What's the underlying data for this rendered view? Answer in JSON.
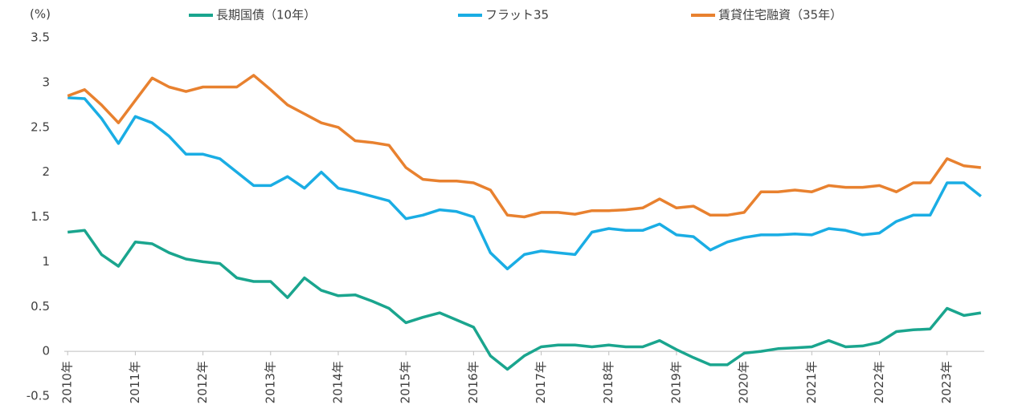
{
  "chart_data": {
    "type": "line",
    "y_unit": "(%)",
    "x": [
      2010,
      2010.25,
      2010.5,
      2010.75,
      2011,
      2011.25,
      2011.5,
      2011.75,
      2012,
      2012.25,
      2012.5,
      2012.75,
      2013,
      2013.25,
      2013.5,
      2013.75,
      2014,
      2014.25,
      2014.5,
      2014.75,
      2015,
      2015.25,
      2015.5,
      2015.75,
      2016,
      2016.25,
      2016.5,
      2016.75,
      2017,
      2017.25,
      2017.5,
      2017.75,
      2018,
      2018.25,
      2018.5,
      2018.75,
      2019,
      2019.25,
      2019.5,
      2019.75,
      2020,
      2020.25,
      2020.5,
      2020.75,
      2021,
      2021.25,
      2021.5,
      2021.75,
      2022,
      2022.25,
      2022.5,
      2022.75,
      2023,
      2023.25,
      2023.5
    ],
    "series": [
      {
        "name": "長期国債（10年）",
        "color": "#1aa58e",
        "values": [
          1.33,
          1.35,
          1.08,
          0.95,
          1.22,
          1.2,
          1.1,
          1.03,
          1.0,
          0.98,
          0.82,
          0.78,
          0.78,
          0.6,
          0.82,
          0.68,
          0.62,
          0.63,
          0.56,
          0.48,
          0.32,
          0.38,
          0.43,
          0.35,
          0.27,
          -0.05,
          -0.2,
          -0.05,
          0.05,
          0.07,
          0.07,
          0.05,
          0.07,
          0.05,
          0.05,
          0.12,
          0.02,
          -0.07,
          -0.15,
          -0.15,
          -0.02,
          0.0,
          0.03,
          0.04,
          0.05,
          0.12,
          0.05,
          0.06,
          0.1,
          0.22,
          0.24,
          0.25,
          0.48,
          0.4,
          0.43
        ]
      },
      {
        "name": "フラット35",
        "color": "#1aade4",
        "values": [
          2.83,
          2.82,
          2.6,
          2.32,
          2.62,
          2.55,
          2.4,
          2.2,
          2.2,
          2.15,
          2.0,
          1.85,
          1.85,
          1.95,
          1.82,
          2.0,
          1.82,
          1.78,
          1.73,
          1.68,
          1.48,
          1.52,
          1.58,
          1.56,
          1.5,
          1.1,
          0.92,
          1.08,
          1.12,
          1.1,
          1.08,
          1.33,
          1.37,
          1.35,
          1.35,
          1.42,
          1.3,
          1.28,
          1.13,
          1.22,
          1.27,
          1.3,
          1.3,
          1.31,
          1.3,
          1.37,
          1.35,
          1.3,
          1.32,
          1.45,
          1.52,
          1.52,
          1.88,
          1.88,
          1.73
        ]
      },
      {
        "name": "賃貸住宅融資（35年）",
        "color": "#e8812f",
        "values": [
          2.85,
          2.92,
          2.75,
          2.55,
          2.8,
          3.05,
          2.95,
          2.9,
          2.95,
          2.95,
          2.95,
          3.08,
          2.92,
          2.75,
          2.65,
          2.55,
          2.5,
          2.35,
          2.33,
          2.3,
          2.05,
          1.92,
          1.9,
          1.9,
          1.88,
          1.8,
          1.52,
          1.5,
          1.55,
          1.55,
          1.53,
          1.57,
          1.57,
          1.58,
          1.6,
          1.7,
          1.6,
          1.62,
          1.52,
          1.52,
          1.55,
          1.78,
          1.78,
          1.8,
          1.78,
          1.85,
          1.83,
          1.83,
          1.85,
          1.78,
          1.88,
          1.88,
          2.15,
          2.07,
          2.05
        ]
      }
    ],
    "xlim": [
      2009.95,
      2023.55
    ],
    "xticks": [
      {
        "value": 2010,
        "label": "2010年"
      },
      {
        "value": 2011,
        "label": "2011年"
      },
      {
        "value": 2012,
        "label": "2012年"
      },
      {
        "value": 2013,
        "label": "2013年"
      },
      {
        "value": 2014,
        "label": "2014年"
      },
      {
        "value": 2015,
        "label": "2015年"
      },
      {
        "value": 2016,
        "label": "2016年"
      },
      {
        "value": 2017,
        "label": "2017年"
      },
      {
        "value": 2018,
        "label": "2018年"
      },
      {
        "value": 2019,
        "label": "2019年"
      },
      {
        "value": 2020,
        "label": "2020年"
      },
      {
        "value": 2021,
        "label": "2021年"
      },
      {
        "value": 2022,
        "label": "2022年"
      },
      {
        "value": 2023,
        "label": "2023年"
      }
    ],
    "ylim": [
      -0.5,
      3.5
    ],
    "yticks": [
      3.5,
      3,
      2.5,
      2,
      1.5,
      1,
      0.5,
      0,
      -0.5
    ],
    "grid": false,
    "legend": "top"
  }
}
